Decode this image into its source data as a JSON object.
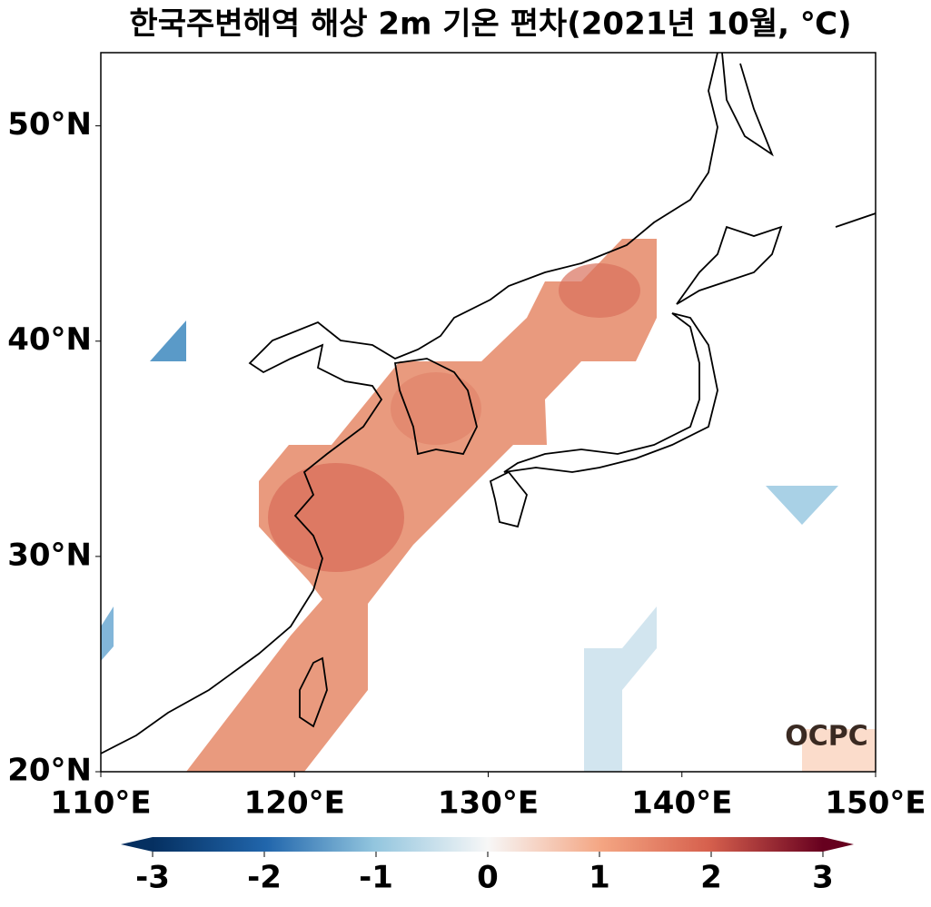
{
  "chart_data": {
    "type": "map",
    "title": "한국주변해역 해상 2m 기온 편차(2021년 10월, ℃)",
    "xlim": [
      110,
      150
    ],
    "ylim": [
      20,
      53.4
    ],
    "xticks": [
      {
        "value": 110,
        "label": "110°E"
      },
      {
        "value": 120,
        "label": "120°E"
      },
      {
        "value": 130,
        "label": "130°E"
      },
      {
        "value": 140,
        "label": "140°E"
      },
      {
        "value": 150,
        "label": "150°E"
      }
    ],
    "yticks": [
      {
        "value": 20,
        "label": "20°N"
      },
      {
        "value": 30,
        "label": "30°N"
      },
      {
        "value": 40,
        "label": "40°N"
      },
      {
        "value": 50,
        "label": "50°N"
      }
    ],
    "colorbar": {
      "lim": [
        -3,
        3
      ],
      "ticks": [
        -3,
        -2,
        -1,
        0,
        1,
        2,
        3
      ]
    },
    "logo": "OCPC"
  }
}
